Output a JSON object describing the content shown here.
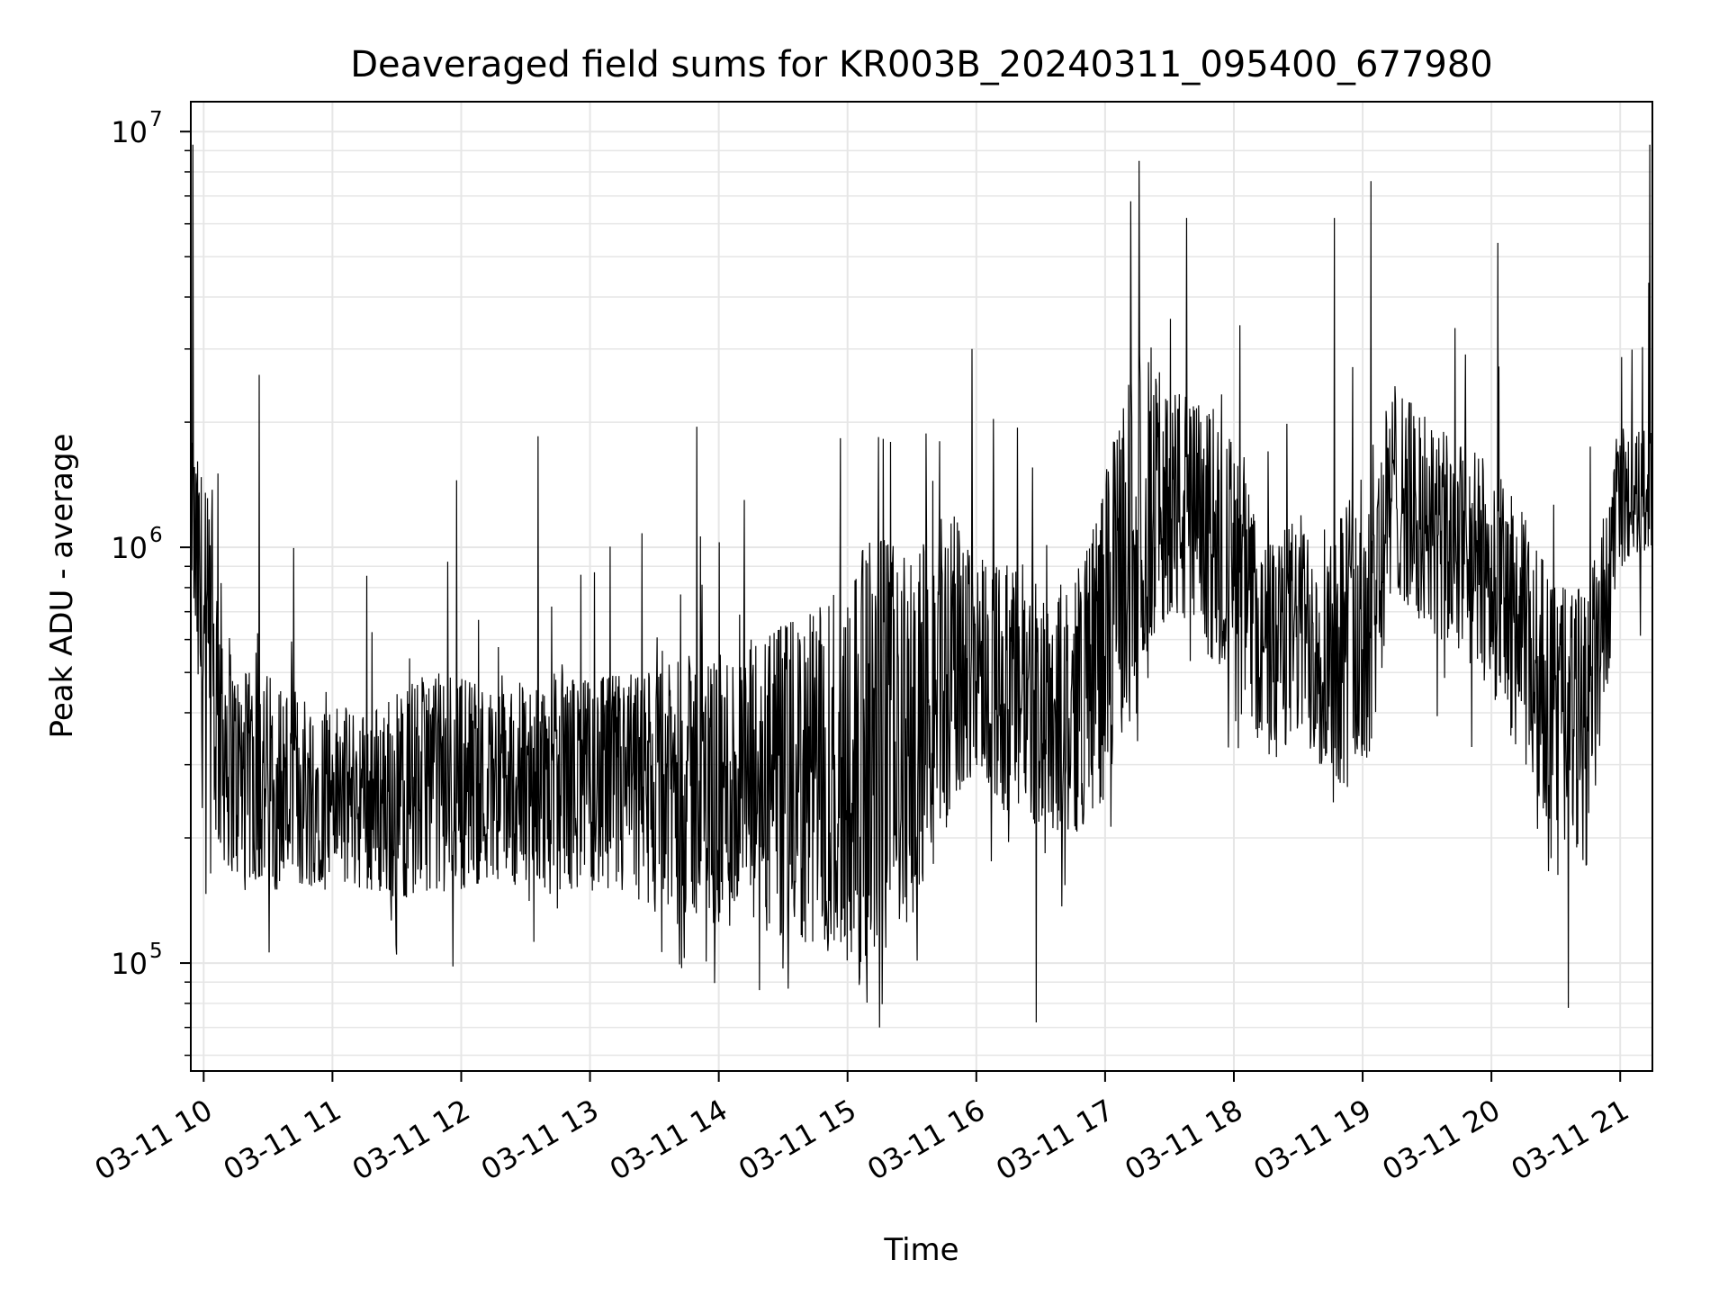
{
  "chart_data": {
    "type": "line",
    "title": "Deaveraged field sums for KR003B_20240311_095400_677980",
    "xlabel": "Time",
    "ylabel": "Peak ADU - average",
    "yscale": "log",
    "ylim": [
      55000,
      11800000
    ],
    "xlim": [
      "03-11 09:54",
      "03-11 21:15"
    ],
    "grid": true,
    "line_color": "#000000",
    "grid_color": "#e6e6e6",
    "x_ticks": [
      {
        "value": "03-11 10:00",
        "label": "03-11 10"
      },
      {
        "value": "03-11 11:00",
        "label": "03-11 11"
      },
      {
        "value": "03-11 12:00",
        "label": "03-11 12"
      },
      {
        "value": "03-11 13:00",
        "label": "03-11 13"
      },
      {
        "value": "03-11 14:00",
        "label": "03-11 14"
      },
      {
        "value": "03-11 15:00",
        "label": "03-11 15"
      },
      {
        "value": "03-11 16:00",
        "label": "03-11 16"
      },
      {
        "value": "03-11 17:00",
        "label": "03-11 17"
      },
      {
        "value": "03-11 18:00",
        "label": "03-11 18"
      },
      {
        "value": "03-11 19:00",
        "label": "03-11 19"
      },
      {
        "value": "03-11 20:00",
        "label": "03-11 20"
      },
      {
        "value": "03-11 21:00",
        "label": "03-11 21"
      }
    ],
    "y_ticks": [
      {
        "value": 100000,
        "base": "10",
        "exp": "5"
      },
      {
        "value": 1000000,
        "base": "10",
        "exp": "6"
      },
      {
        "value": 10000000,
        "base": "10",
        "exp": "7"
      }
    ],
    "series": [
      {
        "x": [
          "03-11 09:54",
          "03-11 10:00",
          "03-11 10:15",
          "03-11 10:30",
          "03-11 10:45",
          "03-11 11:00",
          "03-11 11:15",
          "03-11 11:30",
          "03-11 11:45",
          "03-11 12:00",
          "03-11 12:15",
          "03-11 12:30",
          "03-11 12:45",
          "03-11 13:00",
          "03-11 13:15",
          "03-11 13:30",
          "03-11 13:45",
          "03-11 14:00",
          "03-11 14:15",
          "03-11 14:30",
          "03-11 14:45",
          "03-11 15:00",
          "03-11 15:15",
          "03-11 15:30",
          "03-11 15:45",
          "03-11 16:00",
          "03-11 16:15",
          "03-11 16:30",
          "03-11 16:45",
          "03-11 17:00",
          "03-11 17:15",
          "03-11 17:30",
          "03-11 17:45",
          "03-11 18:00",
          "03-11 18:15",
          "03-11 18:30",
          "03-11 18:45",
          "03-11 19:00",
          "03-11 19:15",
          "03-11 19:30",
          "03-11 19:45",
          "03-11 20:00",
          "03-11 20:15",
          "03-11 20:30",
          "03-11 20:45",
          "03-11 21:00",
          "03-11 21:15"
        ],
        "low": [
          900000,
          200000,
          160000,
          150000,
          150000,
          160000,
          150000,
          140000,
          150000,
          150000,
          160000,
          150000,
          150000,
          150000,
          140000,
          130000,
          130000,
          120000,
          120000,
          110000,
          110000,
          100000,
          100000,
          130000,
          200000,
          300000,
          220000,
          210000,
          200000,
          250000,
          500000,
          700000,
          550000,
          500000,
          300000,
          350000,
          280000,
          250000,
          800000,
          600000,
          550000,
          450000,
          300000,
          200000,
          170000,
          900000,
          1000000
        ],
        "high": [
          1800000,
          1500000,
          500000,
          500000,
          450000,
          420000,
          400000,
          450000,
          500000,
          500000,
          450000,
          480000,
          500000,
          480000,
          500000,
          500000,
          550000,
          550000,
          600000,
          650000,
          700000,
          900000,
          1100000,
          900000,
          1300000,
          1000000,
          900000,
          850000,
          800000,
          1500000,
          3000000,
          2500000,
          2200000,
          1800000,
          1000000,
          1200000,
          1200000,
          1500000,
          2500000,
          2000000,
          1800000,
          1600000,
          1200000,
          800000,
          800000,
          1800000,
          2000000
        ],
        "spikes": [
          {
            "x": "03-11 09:55",
            "y": 9300000
          },
          {
            "x": "03-11 10:26",
            "y": 2600000
          },
          {
            "x": "03-11 11:58",
            "y": 1450000
          },
          {
            "x": "03-11 12:36",
            "y": 1850000
          },
          {
            "x": "03-11 13:50",
            "y": 1950000
          },
          {
            "x": "03-11 14:12",
            "y": 1300000
          },
          {
            "x": "03-11 15:15",
            "y": 70000
          },
          {
            "x": "03-11 15:58",
            "y": 3000000
          },
          {
            "x": "03-11 16:28",
            "y": 72000
          },
          {
            "x": "03-11 17:12",
            "y": 6800000
          },
          {
            "x": "03-11 17:16",
            "y": 8500000
          },
          {
            "x": "03-11 17:38",
            "y": 6200000
          },
          {
            "x": "03-11 18:47",
            "y": 6200000
          },
          {
            "x": "03-11 19:04",
            "y": 7600000
          },
          {
            "x": "03-11 20:03",
            "y": 5400000
          },
          {
            "x": "03-11 20:36",
            "y": 78000
          },
          {
            "x": "03-11 21:14",
            "y": 9300000
          }
        ]
      }
    ]
  }
}
